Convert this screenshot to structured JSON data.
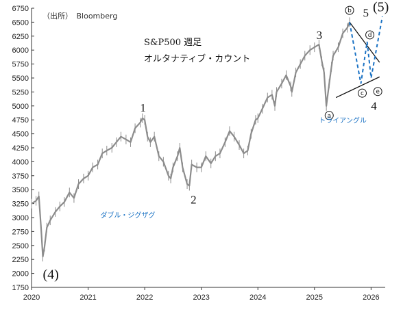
{
  "chart_data": {
    "type": "line",
    "source": "（出所）　Bloomberg",
    "title": "S&P500 週足",
    "subtitle": "オルタナティブ・カウント",
    "ylim": [
      1750,
      6750
    ],
    "yticks": [
      "1750",
      "2000",
      "2250",
      "2500",
      "2750",
      "3000",
      "3250",
      "3500",
      "3750",
      "4000",
      "4250",
      "4500",
      "4750",
      "5000",
      "5250",
      "5500",
      "5750",
      "6000",
      "6250",
      "6500",
      "6750"
    ],
    "xlim": [
      2020.0,
      2026.25
    ],
    "xticks": [
      "2020",
      "2021",
      "2022",
      "2023",
      "2024",
      "2025",
      "2026"
    ],
    "series": [
      {
        "x": [
          2020.0,
          2020.08,
          2020.13,
          2020.17,
          2020.2,
          2020.23,
          2020.27,
          2020.33,
          2020.42,
          2020.5,
          2020.58,
          2020.67,
          2020.75,
          2020.83,
          2020.92,
          2021.0,
          2021.08,
          2021.17,
          2021.25,
          2021.33,
          2021.42,
          2021.5,
          2021.58,
          2021.67,
          2021.75,
          2021.83,
          2021.92,
          2021.96,
          2022.0,
          2022.05,
          2022.1,
          2022.17,
          2022.25,
          2022.33,
          2022.42,
          2022.46,
          2022.5,
          2022.58,
          2022.62,
          2022.67,
          2022.75,
          2022.79,
          2022.83,
          2022.92,
          2023.0,
          2023.08,
          2023.17,
          2023.25,
          2023.33,
          2023.42,
          2023.5,
          2023.58,
          2023.67,
          2023.75,
          2023.82,
          2023.88,
          2023.96,
          2024.0,
          2024.08,
          2024.17,
          2024.25,
          2024.3,
          2024.33,
          2024.42,
          2024.5,
          2024.58,
          2024.6,
          2024.67,
          2024.75,
          2024.83,
          2024.92,
          2025.0,
          2025.08,
          2025.13,
          2025.17,
          2025.21,
          2025.26,
          2025.3,
          2025.33,
          2025.42,
          2025.5,
          2025.58,
          2025.62
        ],
        "values": [
          3250,
          3300,
          3380,
          2800,
          2300,
          2480,
          2820,
          2950,
          3100,
          3200,
          3280,
          3450,
          3350,
          3600,
          3700,
          3750,
          3900,
          3950,
          4150,
          4200,
          4250,
          4350,
          4450,
          4400,
          4350,
          4600,
          4700,
          4780,
          4750,
          4450,
          4350,
          4450,
          4100,
          4000,
          3750,
          3700,
          3900,
          4100,
          4250,
          3900,
          3600,
          3570,
          3950,
          3900,
          3900,
          4100,
          3970,
          4100,
          4150,
          4350,
          4550,
          4450,
          4300,
          4150,
          4200,
          4500,
          4750,
          4780,
          4950,
          5150,
          5200,
          5000,
          5250,
          5400,
          5550,
          5350,
          5250,
          5600,
          5750,
          5900,
          6000,
          6050,
          6100,
          5800,
          5600,
          5000,
          5400,
          5700,
          5900,
          6050,
          6300,
          6400,
          6500
        ]
      }
    ],
    "wave_labels": [
      {
        "label": "(4)",
        "x": 2020.22,
        "y": 2220
      },
      {
        "label": "1",
        "x": 2021.97,
        "y": 4780
      },
      {
        "label": "2",
        "x": 2022.79,
        "y": 3570
      },
      {
        "label": "3",
        "x": 2025.05,
        "y": 6100
      },
      {
        "label": "4",
        "x": 2026.05,
        "y": 5250
      },
      {
        "label": "5",
        "x": 2025.98,
        "y": 6500
      },
      {
        "label": "(5)",
        "x": 2026.1,
        "y": 6600
      }
    ],
    "circled_labels": [
      {
        "label": "a",
        "x": 2025.26,
        "y": 5000
      },
      {
        "label": "b",
        "x": 2025.62,
        "y": 6540
      },
      {
        "label": "c",
        "x": 2025.82,
        "y": 5400
      },
      {
        "label": "d",
        "x": 2025.93,
        "y": 6150
      },
      {
        "label": "e",
        "x": 2026.07,
        "y": 5430
      }
    ],
    "pattern_labels": [
      {
        "label": "ダブル・ジグザグ",
        "x": 2021.7,
        "y": 3000
      },
      {
        "label": "トライアングル",
        "x": 2025.5,
        "y": 4700
      }
    ],
    "trendlines": [
      {
        "x1": 2025.38,
        "y1": 5150,
        "x2": 2026.15,
        "y2": 5520
      },
      {
        "x1": 2025.62,
        "y1": 6500,
        "x2": 2026.15,
        "y2": 5780
      }
    ],
    "projection": {
      "x": [
        2025.62,
        2025.82,
        2025.93,
        2026.0,
        2026.2
      ],
      "values": [
        6500,
        5400,
        6150,
        5500,
        6600
      ]
    },
    "colors": {
      "price": "#8c8c8c",
      "projection": "#1a72c4",
      "pattern_text": "#1a72c4",
      "trendline": "#111111",
      "axis": "#333333"
    }
  }
}
